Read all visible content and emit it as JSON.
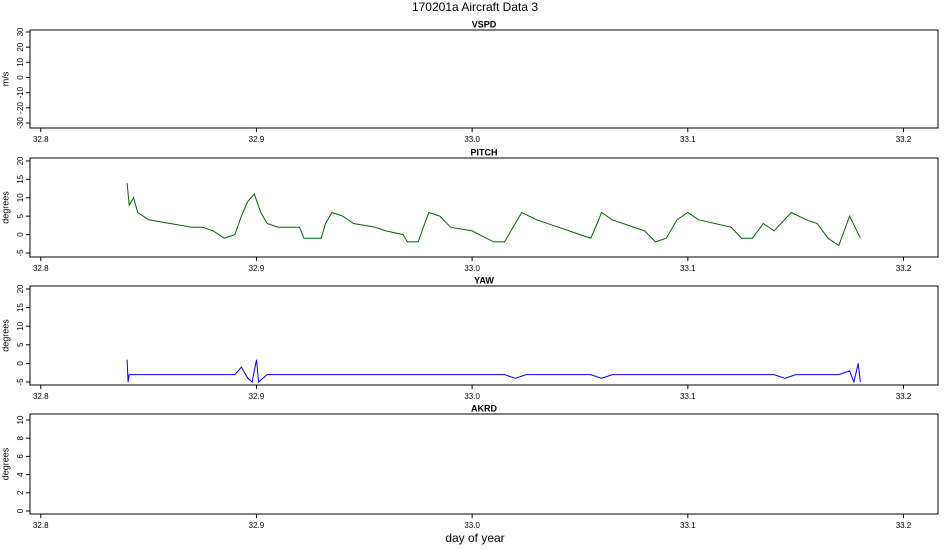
{
  "title": "170201a   Aircraft Data 3",
  "xlabel": "day of year",
  "chart_data": [
    {
      "type": "line",
      "title": "VSPD",
      "ylabel": "m/s",
      "xlim": [
        32.795,
        33.216
      ],
      "ylim": [
        -33.3,
        31.3
      ],
      "xticks": [
        32.8,
        32.9,
        {
          "value": 33,
          "label": "33.0"
        },
        33.1,
        33.2
      ],
      "yticks": [
        -30,
        -20,
        -10,
        0,
        10,
        20,
        30
      ]
    },
    {
      "type": "line",
      "title": "PITCH",
      "ylabel": "degrees",
      "xlim": [
        32.795,
        33.216
      ],
      "ylim": [
        -6.1,
        20.8
      ],
      "xticks": [
        32.8,
        32.9,
        {
          "value": 33,
          "label": "33.0"
        },
        33.1,
        33.2
      ],
      "yticks": [
        -5,
        0,
        5,
        10,
        15,
        20
      ],
      "color": "#006400",
      "x": [
        32.84,
        32.841,
        32.843,
        32.845,
        32.85,
        32.86,
        32.87,
        32.875,
        32.88,
        32.885,
        32.89,
        32.893,
        32.896,
        32.899,
        32.902,
        32.905,
        32.91,
        32.92,
        32.922,
        32.93,
        32.932,
        32.935,
        32.94,
        32.945,
        32.955,
        32.96,
        32.968,
        32.97,
        32.975,
        32.978,
        32.98,
        32.985,
        32.99,
        33.0,
        33.01,
        33.015,
        33.02,
        33.023,
        33.03,
        33.04,
        33.05,
        33.055,
        33.058,
        33.06,
        33.065,
        33.08,
        33.085,
        33.09,
        33.095,
        33.1,
        33.105,
        33.12,
        33.125,
        33.13,
        33.135,
        33.14,
        33.148,
        33.155,
        33.16,
        33.165,
        33.17,
        33.175,
        33.18
      ],
      "values": [
        14,
        8,
        10,
        6,
        4,
        3,
        2,
        2,
        1,
        -1,
        0,
        5,
        9,
        11,
        6,
        3,
        2,
        2,
        -1,
        -1,
        3,
        6,
        5,
        3,
        2,
        1,
        0,
        -2,
        -2,
        3,
        6,
        5,
        2,
        1,
        -2,
        -2,
        3,
        6,
        4,
        2,
        0,
        -1,
        3,
        6,
        4,
        1,
        -2,
        -1,
        4,
        6,
        4,
        2,
        -1,
        -1,
        3,
        1,
        6,
        4,
        3,
        -1,
        -3,
        5,
        -1
      ]
    },
    {
      "type": "line",
      "title": "YAW",
      "ylabel": "degrees",
      "xlim": [
        32.795,
        33.216
      ],
      "ylim": [
        -5.8,
        20.8
      ],
      "xticks": [
        32.8,
        32.9,
        {
          "value": 33,
          "label": "33.0"
        },
        33.1,
        33.2
      ],
      "yticks": [
        -5,
        0,
        5,
        10,
        15,
        20
      ],
      "color": "#0000ff",
      "x": [
        32.84,
        32.8405,
        32.841,
        32.845,
        32.86,
        32.88,
        32.89,
        32.893,
        32.896,
        32.898,
        32.9,
        32.901,
        32.905,
        32.92,
        32.95,
        32.98,
        33.0,
        33.015,
        33.02,
        33.025,
        33.04,
        33.055,
        33.06,
        33.065,
        33.08,
        33.095,
        33.1,
        33.12,
        33.14,
        33.145,
        33.15,
        33.16,
        33.17,
        33.175,
        33.177,
        33.179,
        33.18
      ],
      "values": [
        1,
        -5,
        -3,
        -3,
        -3,
        -3,
        -3,
        -1,
        -4,
        -5,
        1,
        -5,
        -3,
        -3,
        -3,
        -3,
        -3,
        -3,
        -4,
        -3,
        -3,
        -3,
        -4,
        -3,
        -3,
        -3,
        -3,
        -3,
        -3,
        -4,
        -3,
        -3,
        -3,
        -2,
        -5,
        0,
        -5
      ]
    },
    {
      "type": "line",
      "title": "AKRD",
      "ylabel": "degrees",
      "xlim": [
        32.795,
        33.216
      ],
      "ylim": [
        -0.33,
        10.66
      ],
      "xticks": [
        32.8,
        32.9,
        {
          "value": 33,
          "label": "33.0"
        },
        33.1,
        33.2
      ],
      "yticks": [
        0,
        2,
        4,
        6,
        8,
        10
      ]
    }
  ]
}
